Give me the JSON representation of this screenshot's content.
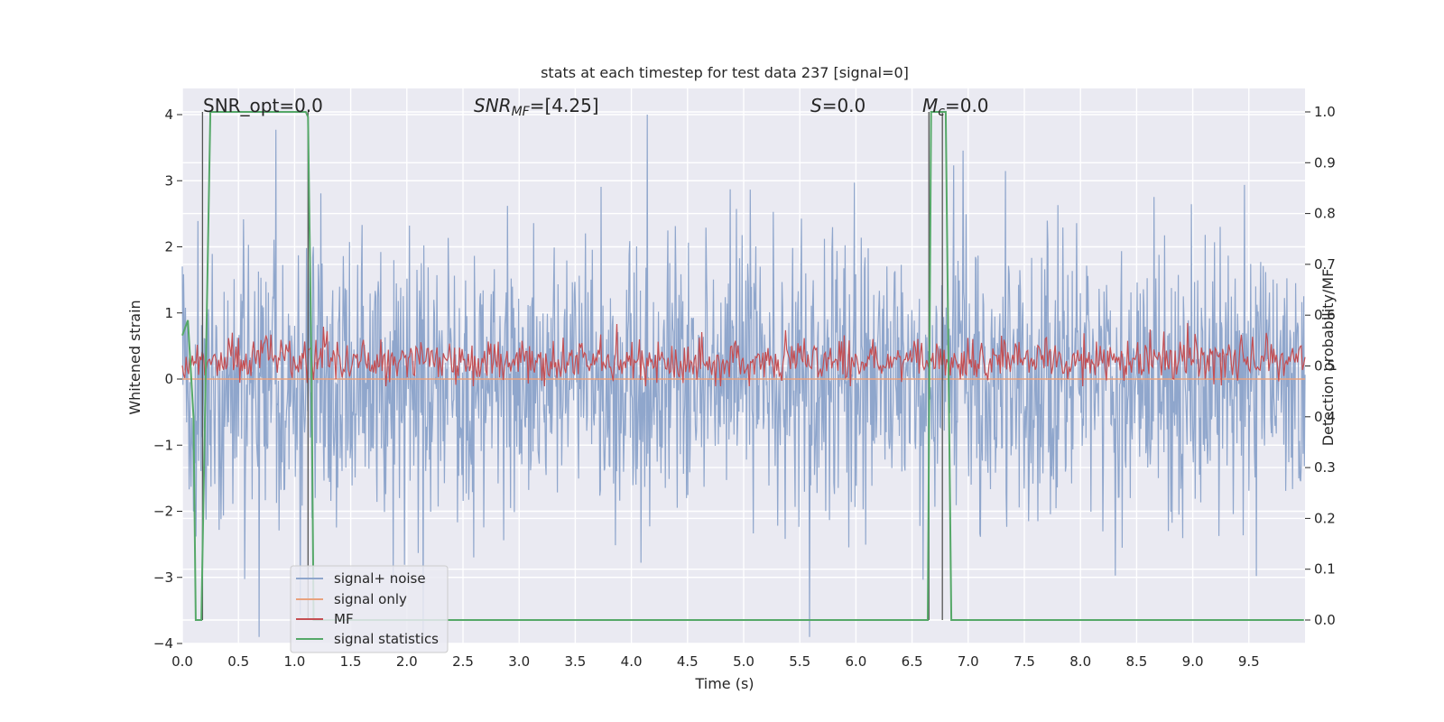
{
  "chart_data": {
    "type": "line",
    "title": "stats at each timestep for test data 237 [signal=0]",
    "xlabel": "Time (s)",
    "ylabel": "Whitened strain",
    "ylabel_right": "Detection probability/MF",
    "xlim": [
      0.0,
      10.0
    ],
    "ylim": [
      -4.0,
      4.0
    ],
    "ylim_right": [
      0.0,
      1.0
    ],
    "x_ticks": [
      "0.0",
      "0.5",
      "1.0",
      "1.5",
      "2.0",
      "2.5",
      "3.0",
      "3.5",
      "4.0",
      "4.5",
      "5.0",
      "5.5",
      "6.0",
      "6.5",
      "7.0",
      "7.5",
      "8.0",
      "8.5",
      "9.0",
      "9.5"
    ],
    "y_ticks": [
      "4",
      "3",
      "2",
      "1",
      "0",
      "−1",
      "−2",
      "−3",
      "−4"
    ],
    "y_ticks_right": [
      "1.0",
      "0.9",
      "0.8",
      "0.7",
      "0.6",
      "0.5",
      "0.4",
      "0.3",
      "0.2",
      "0.1",
      "0.0"
    ],
    "grid": true,
    "legend_position": "lower-left",
    "annotations": {
      "snr_opt": "SNR_opt=0.0",
      "snr_mf_main": "SNR",
      "snr_mf_sub": "MF",
      "snr_mf_rest": "=[4.25]",
      "s_main": "S",
      "s_rest": "=0.0",
      "mc_main": "M",
      "mc_sub": "c",
      "mc_rest": "=0.0"
    },
    "series": [
      {
        "name": "signal+ noise",
        "color": "#8fa6cc",
        "approx_range": [
          -3.9,
          4.0
        ]
      },
      {
        "name": "signal only",
        "color": "#e8a27e",
        "values": "constant 0"
      },
      {
        "name": "MF",
        "color": "#c44e52",
        "axis": "right",
        "approx_range": [
          0.45,
          0.6
        ]
      },
      {
        "name": "signal statistics",
        "color": "#55a868",
        "axis": "right",
        "x": [
          0.0,
          0.05,
          0.1,
          0.12,
          0.17,
          0.25,
          1.1,
          1.12,
          1.15,
          1.17,
          6.64,
          6.67,
          6.8,
          6.85,
          6.9,
          9.99
        ],
        "values": [
          0.56,
          0.59,
          0.4,
          0.0,
          0.0,
          1.0,
          1.0,
          0.99,
          0.5,
          0.0,
          0.0,
          1.0,
          1.0,
          0.0,
          0.0,
          0.0
        ]
      }
    ],
    "vertical_markers_x": [
      0.18,
      1.12,
      6.65,
      6.77
    ]
  }
}
